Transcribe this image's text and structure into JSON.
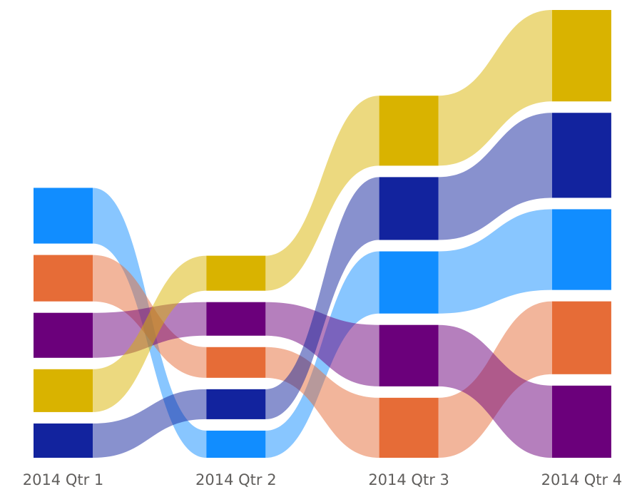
{
  "chart_data": {
    "type": "ribbon",
    "categories": [
      "2014 Qtr 1",
      "2014 Qtr 2",
      "2014 Qtr 3",
      "2014 Qtr 4"
    ],
    "series": [
      {
        "color": "#118DFF",
        "values": [
          78,
          38,
          87,
          113
        ]
      },
      {
        "color": "#E66C37",
        "values": [
          65,
          43,
          84,
          102
        ]
      },
      {
        "color": "#6B007B",
        "values": [
          63,
          47,
          86,
          101
        ]
      },
      {
        "color": "#D9B300",
        "values": [
          60,
          49,
          98,
          128
        ]
      },
      {
        "color": "#12239E",
        "values": [
          48,
          42,
          88,
          119
        ]
      }
    ]
  }
}
